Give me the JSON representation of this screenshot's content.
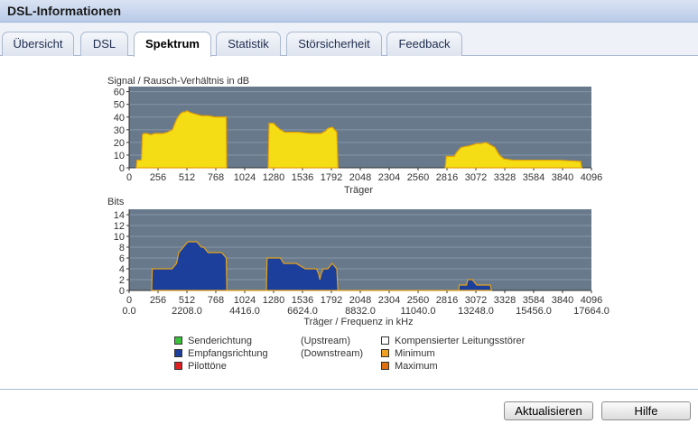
{
  "window": {
    "title": "DSL-Informationen"
  },
  "tabs": [
    {
      "label": "Übersicht",
      "active": false
    },
    {
      "label": "DSL",
      "active": false
    },
    {
      "label": "Spektrum",
      "active": true
    },
    {
      "label": "Statistik",
      "active": false
    },
    {
      "label": "Störsicherheit",
      "active": false
    },
    {
      "label": "Feedback",
      "active": false
    }
  ],
  "colors": {
    "plot_bg": "#67798b",
    "grid": "#8596a7",
    "snr_fill": "#f5dd16",
    "snr_line": "#e7a200",
    "downstream": "#1b3f9a",
    "upstream": "#3bc23b",
    "pilot": "#e02020",
    "min_max_line": "#e6a31a"
  },
  "legend": {
    "upstream_label": "Senderichtung",
    "upstream_dir": "(Upstream)",
    "downstream_label": "Empfangsrichtung",
    "downstream_dir": "(Downstream)",
    "pilot_label": "Pilottöne",
    "comp_label": "Kompensierter Leitungsstörer",
    "min_label": "Minimum",
    "max_label": "Maximum",
    "colors": {
      "upstream": "#3bc23b",
      "downstream": "#1b3f9a",
      "pilot": "#e02020",
      "comp": "#ffffff",
      "min": "#f0a020",
      "max": "#e07010"
    }
  },
  "chart_data": [
    {
      "type": "area",
      "ylabel": "Signal / Rausch-Verhältnis in dB",
      "xlabel": "Träger",
      "xlim": [
        0,
        4096
      ],
      "ylim": [
        0,
        64
      ],
      "yticks": [
        0,
        10,
        20,
        30,
        40,
        50,
        60
      ],
      "xticks": [
        "0",
        "256",
        "512",
        "768",
        "1024",
        "1280",
        "1536",
        "1792",
        "2048",
        "2304",
        "2560",
        "2816",
        "3072",
        "3328",
        "3584",
        "3840",
        "4096"
      ],
      "series": [
        {
          "x": [
            64,
            70,
            80,
            96,
            106,
            110,
            118,
            128,
            160,
            192,
            224,
            256,
            300,
            340,
            384,
            420,
            440,
            460,
            480,
            500,
            512,
            530,
            560,
            600,
            640,
            700,
            760,
            820,
            860,
            864
          ],
          "y": [
            0,
            6,
            6,
            6,
            6,
            8,
            26,
            27,
            27,
            26,
            27,
            27,
            27,
            28,
            30,
            38,
            41,
            43,
            44,
            44,
            45,
            44,
            43,
            42,
            41,
            41,
            40,
            40,
            40,
            0
          ]
        },
        {
          "x": [
            1232,
            1240,
            1280,
            1300,
            1340,
            1380,
            1400,
            1500,
            1600,
            1700,
            1740,
            1760,
            1800,
            1820,
            1840,
            1850
          ],
          "y": [
            0,
            35,
            35,
            33,
            30,
            28,
            28,
            28,
            27,
            27,
            29,
            31,
            32,
            30,
            28,
            0
          ]
        },
        {
          "x": [
            2800,
            2810,
            2880,
            2900,
            2940,
            2990,
            3000,
            3040,
            3080,
            3120,
            3160,
            3200,
            3240,
            3280,
            3320,
            3400,
            3500,
            3600,
            3700,
            3800,
            4000,
            4010
          ],
          "y": [
            0,
            9,
            9,
            12,
            16,
            17,
            17,
            18,
            19,
            19,
            20,
            18,
            16,
            10,
            7,
            6,
            6,
            6,
            6,
            6,
            5,
            0
          ]
        }
      ]
    },
    {
      "type": "area",
      "ylabel": "Bits",
      "xlabel": "Träger / Frequenz in kHz",
      "xlim": [
        0,
        4096
      ],
      "ylim": [
        0,
        15
      ],
      "yticks": [
        0,
        2,
        4,
        6,
        8,
        10,
        12,
        14
      ],
      "xticks": [
        "0",
        "256",
        "512",
        "768",
        "1024",
        "1280",
        "1536",
        "1792",
        "2048",
        "2304",
        "2560",
        "2816",
        "3072",
        "3328",
        "3584",
        "3840",
        "4096"
      ],
      "freq_ticks": [
        "0.0",
        "2208.0",
        "4416.0",
        "6624.0",
        "8832.0",
        "11040.0",
        "13248.0",
        "15456.0",
        "17664.0"
      ],
      "downstream": {
        "x": [
          200,
          205,
          250,
          280,
          300,
          380,
          420,
          440,
          480,
          520,
          560,
          600,
          640,
          660,
          700,
          750,
          820,
          860,
          866,
          1216,
          1222,
          1280,
          1340,
          1370,
          1410,
          1480,
          1560,
          1600,
          1640,
          1660,
          1680,
          1690,
          1700,
          1720,
          1740,
          1760,
          1800,
          1840,
          1850,
          2920,
          2925,
          2990,
          3000,
          3040,
          3080,
          3120,
          3160,
          3200,
          3210
        ],
        "y": [
          0,
          4,
          4,
          4,
          4,
          4,
          5,
          7,
          8,
          9,
          9,
          9,
          8,
          8,
          7,
          7,
          7,
          6,
          0,
          0,
          6,
          6,
          6,
          5,
          5,
          5,
          4,
          4,
          4,
          4,
          3,
          2,
          3,
          4,
          4,
          4,
          5,
          4,
          0,
          0,
          1,
          1,
          2,
          2,
          1,
          1,
          1,
          1,
          0
        ]
      }
    }
  ],
  "buttons": {
    "refresh": "Aktualisieren",
    "help": "Hilfe"
  }
}
